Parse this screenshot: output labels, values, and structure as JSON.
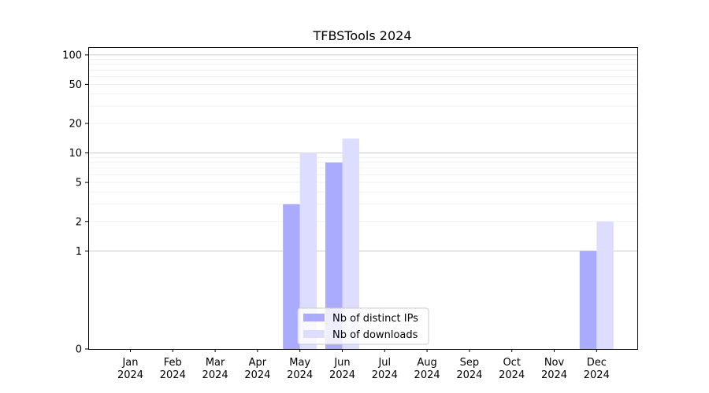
{
  "chart_data": {
    "type": "bar",
    "title": "TFBSTools 2024",
    "xlabel": "",
    "ylabel": "",
    "y_scale": "symlog",
    "ylim": [
      0,
      120
    ],
    "y_ticks": [
      0,
      1,
      2,
      5,
      10,
      20,
      50,
      100
    ],
    "grid": "horizontal (major and minor)",
    "legend_position": "lower-center",
    "categories": [
      "Jan\n2024",
      "Feb\n2024",
      "Mar\n2024",
      "Apr\n2024",
      "May\n2024",
      "Jun\n2024",
      "Jul\n2024",
      "Aug\n2024",
      "Sep\n2024",
      "Oct\n2024",
      "Nov\n2024",
      "Dec\n2024"
    ],
    "series": [
      {
        "name": "Nb of distinct IPs",
        "color": "#aaaaff",
        "values": [
          0,
          0,
          0,
          0,
          3,
          8,
          0,
          0,
          0,
          0,
          0,
          1
        ]
      },
      {
        "name": "Nb of downloads",
        "color": "#ddddff",
        "values": [
          0,
          0,
          0,
          0,
          10,
          14,
          0,
          0,
          0,
          0,
          0,
          2
        ]
      }
    ]
  }
}
